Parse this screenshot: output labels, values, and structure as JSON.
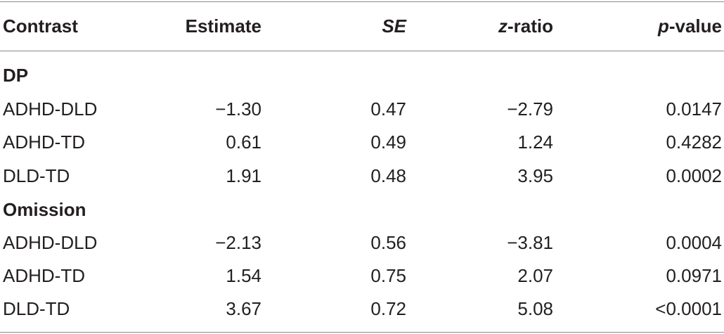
{
  "table": {
    "headers": {
      "contrast": "Contrast",
      "estimate": "Estimate",
      "se": "SE",
      "z_ratio_prefix": "z",
      "z_ratio_suffix": "-ratio",
      "p_value_prefix": "p",
      "p_value_suffix": "-value"
    },
    "groups": [
      {
        "title": "DP",
        "rows": [
          {
            "contrast": "ADHD-DLD",
            "estimate": "−1.30",
            "se": "0.47",
            "z": "−2.79",
            "p": "0.0147"
          },
          {
            "contrast": "ADHD-TD",
            "estimate": "0.61",
            "se": "0.49",
            "z": "1.24",
            "p": "0.4282"
          },
          {
            "contrast": "DLD-TD",
            "estimate": "1.91",
            "se": "0.48",
            "z": "3.95",
            "p": "0.0002"
          }
        ]
      },
      {
        "title": "Omission",
        "rows": [
          {
            "contrast": "ADHD-DLD",
            "estimate": "−2.13",
            "se": "0.56",
            "z": "−3.81",
            "p": "0.0004"
          },
          {
            "contrast": "ADHD-TD",
            "estimate": "1.54",
            "se": "0.75",
            "z": "2.07",
            "p": "0.0971"
          },
          {
            "contrast": "DLD-TD",
            "estimate": "3.67",
            "se": "0.72",
            "z": "5.08",
            "p": "<0.0001"
          }
        ]
      }
    ]
  }
}
